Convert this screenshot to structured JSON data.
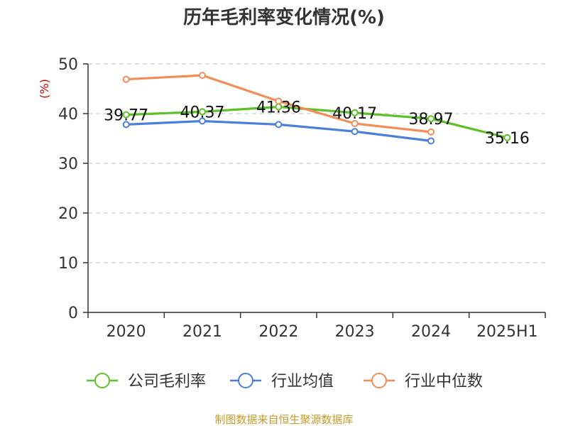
{
  "chart_data": {
    "type": "line",
    "title": "历年毛利率变化情况(%)",
    "ylabel": "(%)",
    "xlabel": "",
    "categories": [
      "2020",
      "2021",
      "2022",
      "2023",
      "2024",
      "2025H1"
    ],
    "ylim": [
      0,
      50
    ],
    "yticks": [
      0,
      10,
      20,
      30,
      40,
      50
    ],
    "grid": true,
    "legend_position": "bottom",
    "series": [
      {
        "name": "公司毛利率",
        "color": "#5cc126",
        "values": [
          39.77,
          40.37,
          41.36,
          40.17,
          38.97,
          35.16
        ],
        "labels": [
          "39.77",
          "40.37",
          "41.36",
          "40.17",
          "38.97",
          "35.16"
        ]
      },
      {
        "name": "行业均值",
        "color": "#4a7fdc",
        "values": [
          37.8,
          38.5,
          37.8,
          36.4,
          34.5,
          null
        ]
      },
      {
        "name": "行业中位数",
        "color": "#f28d55",
        "values": [
          46.9,
          47.7,
          42.5,
          38.0,
          36.3,
          null
        ]
      }
    ],
    "source": "制图数据来自恒生聚源数据库"
  }
}
